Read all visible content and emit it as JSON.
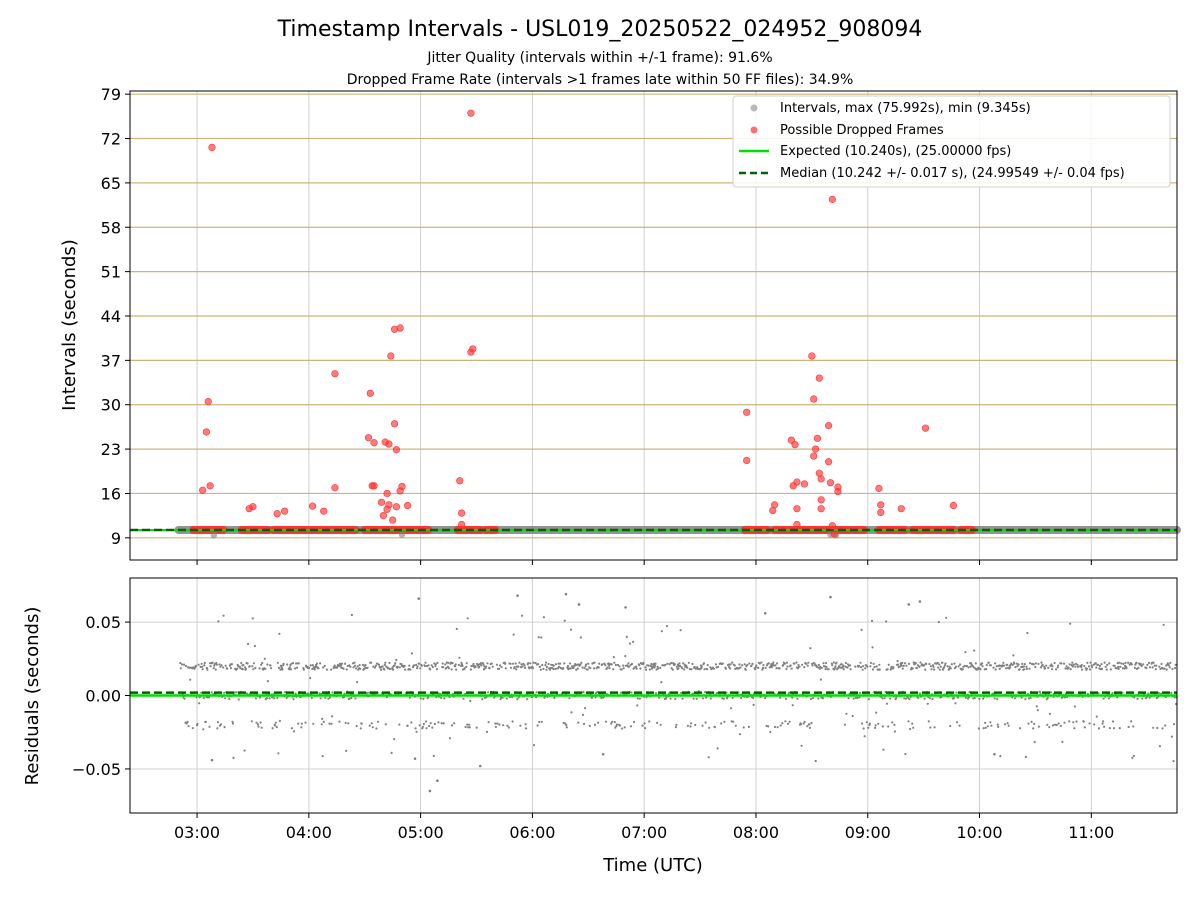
{
  "title": "Timestamp Intervals - USL019_20250522_024952_908094",
  "subtitle_1": "Jitter Quality (intervals within +/-1 frame): 91.6%",
  "subtitle_2": "Dropped Frame Rate (intervals >1 frames late within 50 FF files): 34.9%",
  "chart_data": [
    {
      "type": "scatter",
      "ylabel": "Intervals (seconds)",
      "xlabel": "",
      "ylim": [
        5.5,
        79.5
      ],
      "y_ticks": [
        "9",
        "16",
        "23",
        "30",
        "37",
        "44",
        "51",
        "58",
        "65",
        "72",
        "79"
      ],
      "y_tick_values": [
        9,
        16,
        23,
        30,
        37,
        44,
        51,
        58,
        65,
        72,
        79
      ],
      "grid": "horizontal gridlines at y ticks (tan), vertical gridlines at hour ticks (grey)",
      "legend_position": "top-right",
      "legend": [
        "Intervals, max (75.992s), min (9.345s)",
        "Possible Dropped Frames",
        "Expected (10.240s), (25.00000 fps)",
        "Median (10.242 +/- 0.017 s), (24.99549 +/- 0.04 fps)"
      ],
      "expected_value": 10.24,
      "median_value": 10.242,
      "interval_band_x": [
        "02:50",
        "11:45"
      ],
      "interval_band_y": 10.24,
      "dropped_frame_segments": [
        [
          "02:58",
          "03:14"
        ],
        [
          "03:24",
          "03:38"
        ],
        [
          "03:41",
          "04:00"
        ],
        [
          "04:00",
          "04:25"
        ],
        [
          "04:30",
          "05:04"
        ],
        [
          "05:20",
          "05:32"
        ],
        [
          "05:35",
          "05:40"
        ],
        [
          "07:54",
          "08:06"
        ],
        [
          "08:10",
          "08:50"
        ],
        [
          "08:52",
          "08:58"
        ],
        [
          "09:06",
          "09:20"
        ],
        [
          "09:24",
          "09:35"
        ],
        [
          "09:37",
          "09:46"
        ],
        [
          "09:50",
          "09:56"
        ]
      ],
      "dropped_frames": [
        {
          "t": "03:03",
          "y": 16.5
        },
        {
          "t": "03:05",
          "y": 25.7
        },
        {
          "t": "03:06",
          "y": 30.5
        },
        {
          "t": "03:07",
          "y": 17.2
        },
        {
          "t": "03:08",
          "y": 70.6
        },
        {
          "t": "03:28",
          "y": 13.6
        },
        {
          "t": "03:30",
          "y": 13.9
        },
        {
          "t": "03:43",
          "y": 12.8
        },
        {
          "t": "03:47",
          "y": 13.2
        },
        {
          "t": "04:02",
          "y": 14.0
        },
        {
          "t": "04:08",
          "y": 13.2
        },
        {
          "t": "04:14",
          "y": 34.9
        },
        {
          "t": "04:14",
          "y": 16.9
        },
        {
          "t": "04:32",
          "y": 24.8
        },
        {
          "t": "04:33",
          "y": 31.8
        },
        {
          "t": "04:34",
          "y": 17.2
        },
        {
          "t": "04:35",
          "y": 24.0
        },
        {
          "t": "04:35",
          "y": 17.2
        },
        {
          "t": "04:39",
          "y": 14.6
        },
        {
          "t": "04:40",
          "y": 12.5
        },
        {
          "t": "04:41",
          "y": 24.1
        },
        {
          "t": "04:42",
          "y": 16.0
        },
        {
          "t": "04:42",
          "y": 13.5
        },
        {
          "t": "04:43",
          "y": 14.2
        },
        {
          "t": "04:43",
          "y": 23.8
        },
        {
          "t": "04:44",
          "y": 37.7
        },
        {
          "t": "04:45",
          "y": 11.8
        },
        {
          "t": "04:46",
          "y": 41.9
        },
        {
          "t": "04:46",
          "y": 27.0
        },
        {
          "t": "04:47",
          "y": 22.9
        },
        {
          "t": "04:47",
          "y": 13.9
        },
        {
          "t": "04:49",
          "y": 42.1
        },
        {
          "t": "04:49",
          "y": 16.4
        },
        {
          "t": "04:50",
          "y": 17.1
        },
        {
          "t": "04:53",
          "y": 14.1
        },
        {
          "t": "05:21",
          "y": 18.0
        },
        {
          "t": "05:22",
          "y": 12.9
        },
        {
          "t": "05:22",
          "y": 11.1
        },
        {
          "t": "05:27",
          "y": 76.0
        },
        {
          "t": "05:27",
          "y": 38.3
        },
        {
          "t": "05:28",
          "y": 38.8
        },
        {
          "t": "07:55",
          "y": 28.8
        },
        {
          "t": "07:55",
          "y": 21.2
        },
        {
          "t": "08:09",
          "y": 13.3
        },
        {
          "t": "08:10",
          "y": 14.2
        },
        {
          "t": "08:19",
          "y": 24.4
        },
        {
          "t": "08:20",
          "y": 17.2
        },
        {
          "t": "08:21",
          "y": 23.7
        },
        {
          "t": "08:22",
          "y": 17.8
        },
        {
          "t": "08:22",
          "y": 11.1
        },
        {
          "t": "08:22",
          "y": 13.6
        },
        {
          "t": "08:26",
          "y": 17.5
        },
        {
          "t": "08:30",
          "y": 37.7
        },
        {
          "t": "08:31",
          "y": 30.9
        },
        {
          "t": "08:31",
          "y": 21.9
        },
        {
          "t": "08:32",
          "y": 23.0
        },
        {
          "t": "08:33",
          "y": 24.7
        },
        {
          "t": "08:34",
          "y": 34.2
        },
        {
          "t": "08:34",
          "y": 19.2
        },
        {
          "t": "08:35",
          "y": 18.3
        },
        {
          "t": "08:35",
          "y": 15.0
        },
        {
          "t": "08:35",
          "y": 13.6
        },
        {
          "t": "08:39",
          "y": 26.7
        },
        {
          "t": "08:39",
          "y": 21.0
        },
        {
          "t": "08:40",
          "y": 17.7
        },
        {
          "t": "08:41",
          "y": 62.4
        },
        {
          "t": "08:41",
          "y": 10.9
        },
        {
          "t": "08:42",
          "y": 9.6
        },
        {
          "t": "08:44",
          "y": 17.0
        },
        {
          "t": "08:44",
          "y": 16.3
        },
        {
          "t": "09:06",
          "y": 16.8
        },
        {
          "t": "09:07",
          "y": 14.2
        },
        {
          "t": "09:07",
          "y": 13.0
        },
        {
          "t": "09:18",
          "y": 13.6
        },
        {
          "t": "09:31",
          "y": 26.3
        },
        {
          "t": "09:46",
          "y": 14.1
        }
      ],
      "interval_points": [
        {
          "t": "03:09",
          "y": 9.4
        },
        {
          "t": "04:50",
          "y": 9.5
        },
        {
          "t": "08:40",
          "y": 9.5
        },
        {
          "t": "08:43",
          "y": 9.4
        }
      ]
    },
    {
      "type": "scatter",
      "xlabel": "Time (UTC)",
      "ylabel": "Residuals (seconds)",
      "ylim": [
        -0.08,
        0.08
      ],
      "y_ticks": [
        "−0.05",
        "0.00",
        "0.05"
      ],
      "y_tick_values": [
        -0.05,
        0.0,
        0.05
      ],
      "x_ticks": [
        "03:00",
        "04:00",
        "05:00",
        "06:00",
        "07:00",
        "08:00",
        "09:00",
        "10:00",
        "11:00"
      ],
      "xlim": [
        "02:24",
        "11:46"
      ],
      "grid": "horizontal and vertical gridlines (grey)",
      "zero_line": 0.0,
      "median_line": 0.002,
      "residual_bands": [
        0.02,
        0.0,
        -0.02
      ],
      "residual_extremes": [
        {
          "t": "04:59",
          "y": 0.066
        },
        {
          "t": "05:52",
          "y": 0.068
        },
        {
          "t": "06:18",
          "y": 0.069
        },
        {
          "t": "06:25",
          "y": 0.062
        },
        {
          "t": "06:50",
          "y": 0.06
        },
        {
          "t": "08:05",
          "y": 0.056
        },
        {
          "t": "08:40",
          "y": 0.067
        },
        {
          "t": "09:22",
          "y": 0.062
        },
        {
          "t": "09:28",
          "y": 0.064
        },
        {
          "t": "03:08",
          "y": -0.044
        },
        {
          "t": "04:57",
          "y": -0.043
        },
        {
          "t": "05:05",
          "y": -0.065
        },
        {
          "t": "05:09",
          "y": -0.058
        },
        {
          "t": "05:32",
          "y": -0.048
        },
        {
          "t": "06:38",
          "y": -0.04
        },
        {
          "t": "10:08",
          "y": -0.04
        }
      ]
    }
  ],
  "colors": {
    "interval_grey": "#808080",
    "dropped_red": "#ff3333",
    "expected_green": "#00e000",
    "median_green": "#006400",
    "ygrid_tan": "#c8b878",
    "grid_grey": "#d0d0d0"
  }
}
